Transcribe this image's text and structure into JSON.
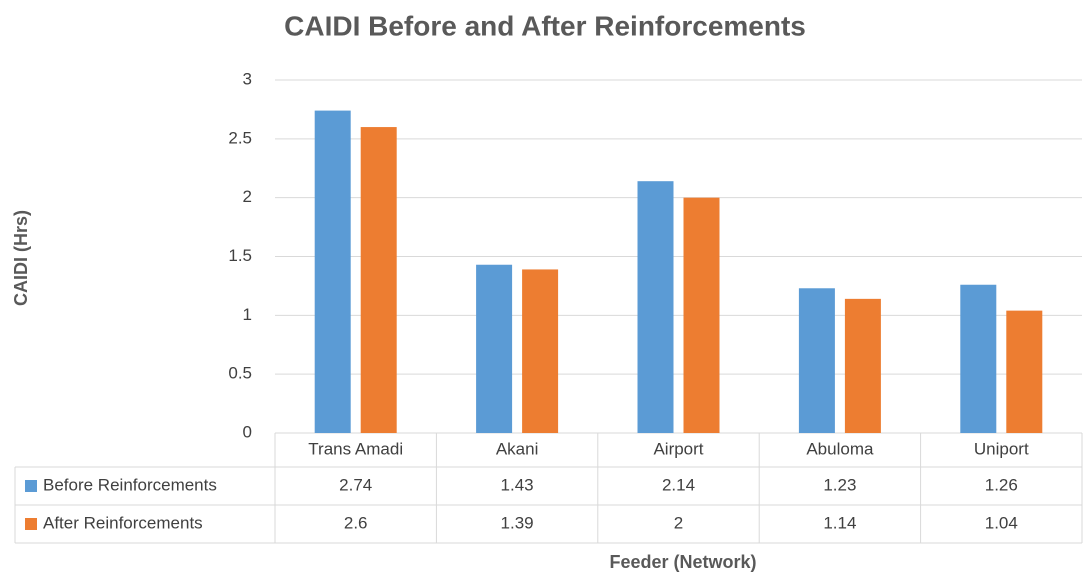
{
  "chart_data": {
    "type": "bar",
    "title": "CAIDI Before and After Reinforcements",
    "y_label": "CAIDI (Hrs)",
    "x_label": "Feeder (Network)",
    "categories": [
      "Trans Amadi",
      "Akani",
      "Airport",
      "Abuloma",
      "Uniport"
    ],
    "series": [
      {
        "name": "Before Reinforcements",
        "color": "#5b9bd5",
        "values": [
          2.74,
          1.43,
          2.14,
          1.23,
          1.26
        ]
      },
      {
        "name": "After Reinforcements",
        "color": "#ed7d31",
        "values": [
          2.6,
          1.39,
          2,
          1.14,
          1.04
        ]
      }
    ],
    "ylim": [
      0,
      3
    ],
    "yticks": [
      0,
      0.5,
      1,
      1.5,
      2,
      2.5,
      3
    ],
    "grid": true,
    "data_table": true
  }
}
